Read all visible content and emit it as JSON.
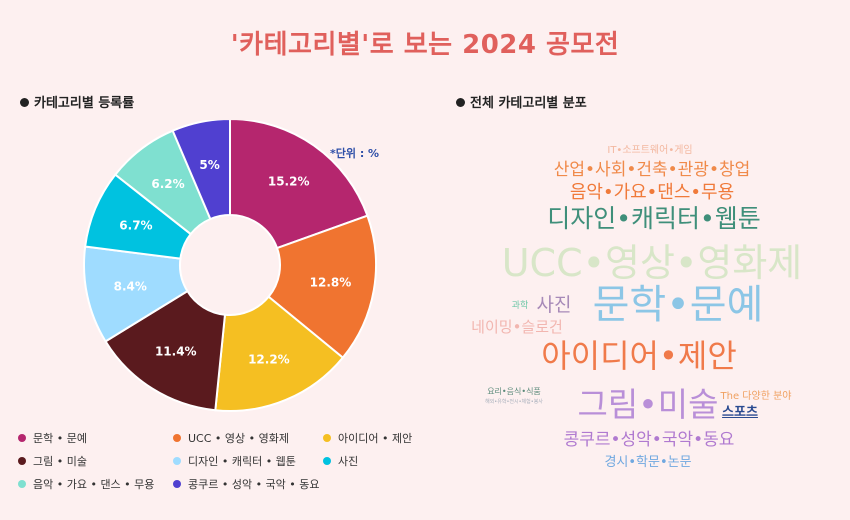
{
  "title": "'카테고리별'로 보는 2024 공모전",
  "left": {
    "heading": "카테고리별 등록률",
    "unit_note": "*단위 : %"
  },
  "right": {
    "heading": "전체 카테고리별 분포"
  },
  "colors": {
    "title": "#e0605c",
    "unit_note": "#2e4fa8"
  },
  "chart_data": {
    "type": "pie",
    "variant": "donut",
    "unit": "%",
    "slices": [
      {
        "label": "문학 • 문예",
        "value": 15.2,
        "color": "#b5266e"
      },
      {
        "label": "UCC • 영상 • 영화제",
        "value": 12.8,
        "color": "#f07430"
      },
      {
        "label": "아이디어 • 제안",
        "value": 12.2,
        "color": "#f5bf22"
      },
      {
        "label": "그림 • 미술",
        "value": 11.4,
        "color": "#5a1a1e"
      },
      {
        "label": "디자인 • 캐릭터 • 웹툰",
        "value": 8.4,
        "color": "#9fdcff"
      },
      {
        "label": "사진",
        "value": 6.7,
        "color": "#00c2e0"
      },
      {
        "label": "음악 • 가요 • 댄스 • 무용",
        "value": 6.2,
        "color": "#7fe0d0"
      },
      {
        "label": "콩쿠르 • 성악 • 국악 • 동요",
        "value": 5.0,
        "color": "#5040d0"
      }
    ],
    "data_labels": [
      "15.2%",
      "12.8%",
      "12.2%",
      "11.4%",
      "8.4%",
      "6.7%",
      "6.2%",
      "5%"
    ],
    "legend": [
      "문학 • 문예",
      "UCC • 영상 • 영화제",
      "아이디어 • 제안",
      "그림 • 미술",
      "디자인 • 캐릭터 • 웹툰",
      "사진",
      "음악 • 가요 • 댄스 • 무용",
      "콩쿠르 • 성악 • 국악 • 동요"
    ],
    "legend_placement": "bottom"
  },
  "word_cloud": [
    {
      "text": "IT•소프트웨어•게임",
      "color": "#f3b8a0"
    },
    {
      "text": "산업•사회•건축•관광•창업",
      "color": "#f08a4a"
    },
    {
      "text": "음악•가요•댄스•무용",
      "color": "#f07a3a"
    },
    {
      "text": "디자인•캐릭터•웹툰",
      "color": "#3f8f7a"
    },
    {
      "text": "UCC•영상•영화제",
      "color": "#d8e6c8"
    },
    {
      "text": "과학",
      "color": "#6fc7a8"
    },
    {
      "text": "사진",
      "color": "#a78ab8"
    },
    {
      "text": "문학•문예",
      "color": "#8cc6e6"
    },
    {
      "text": "네이밍•슬로건",
      "color": "#f2b6b0"
    },
    {
      "text": "아이디어•제안",
      "color": "#f07a4a"
    },
    {
      "text": "요리•음식•식품",
      "color": "#5a8a7a"
    },
    {
      "text": "해외•유학•전시•체험•봉사",
      "color": "#a8b0bc"
    },
    {
      "text": "The 다양한 분야",
      "color": "#f0a060"
    },
    {
      "text": "그림•미술",
      "color": "#b98fd8"
    },
    {
      "text": "스포츠",
      "color": "#2a4a90"
    },
    {
      "text": "콩쿠르•성악•국악•동요",
      "color": "#b07ad0"
    },
    {
      "text": "경시•학문•논문",
      "color": "#70a8e0"
    }
  ]
}
